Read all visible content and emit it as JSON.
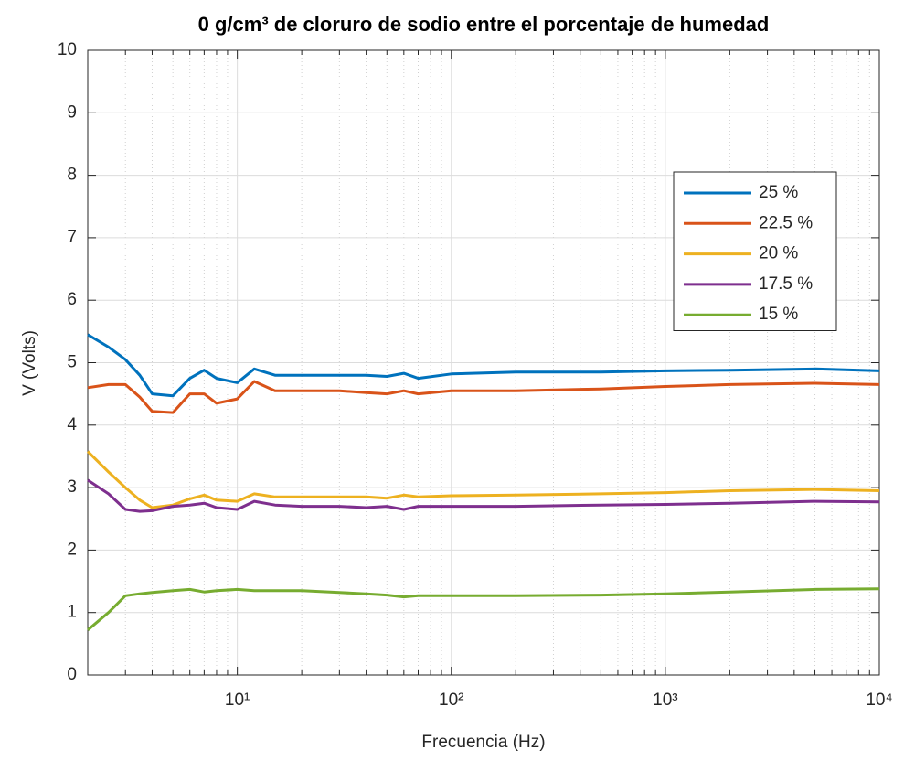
{
  "chart_data": {
    "type": "line",
    "title": "0 g/cm³ de cloruro de sodio entre el porcentaje de humedad",
    "xlabel": "Frecuencia (Hz)",
    "ylabel": "V (Volts)",
    "xscale": "log",
    "grid": true,
    "minor_grid": true,
    "legend": "east",
    "xlim": [
      2,
      10000
    ],
    "ylim": [
      0,
      10
    ],
    "xticks": [
      {
        "value": 10,
        "label": "10¹"
      },
      {
        "value": 100,
        "label": "10²"
      },
      {
        "value": 1000,
        "label": "10³"
      },
      {
        "value": 10000,
        "label": "10⁴"
      }
    ],
    "yticks": [
      0,
      1,
      2,
      3,
      4,
      5,
      6,
      7,
      8,
      9,
      10
    ],
    "x": [
      2,
      2.5,
      3,
      3.5,
      4,
      5,
      6,
      7,
      8,
      10,
      12,
      15,
      20,
      30,
      40,
      50,
      60,
      70,
      100,
      200,
      500,
      1000,
      2000,
      5000,
      10000
    ],
    "series": [
      {
        "name": "25 %",
        "color": "#0072bd",
        "values": [
          5.45,
          5.25,
          5.05,
          4.8,
          4.5,
          4.47,
          4.75,
          4.88,
          4.75,
          4.68,
          4.9,
          4.8,
          4.8,
          4.8,
          4.8,
          4.78,
          4.83,
          4.75,
          4.82,
          4.85,
          4.85,
          4.87,
          4.88,
          4.9,
          4.87
        ]
      },
      {
        "name": "22.5 %",
        "color": "#d95319",
        "values": [
          4.6,
          4.65,
          4.65,
          4.45,
          4.22,
          4.2,
          4.5,
          4.5,
          4.35,
          4.42,
          4.7,
          4.55,
          4.55,
          4.55,
          4.52,
          4.5,
          4.55,
          4.5,
          4.55,
          4.55,
          4.58,
          4.62,
          4.65,
          4.67,
          4.65
        ]
      },
      {
        "name": "20 %",
        "color": "#edb120",
        "values": [
          3.58,
          3.25,
          3.0,
          2.8,
          2.68,
          2.72,
          2.82,
          2.88,
          2.8,
          2.78,
          2.9,
          2.85,
          2.85,
          2.85,
          2.85,
          2.83,
          2.88,
          2.85,
          2.87,
          2.88,
          2.9,
          2.92,
          2.95,
          2.97,
          2.95
        ]
      },
      {
        "name": "17.5 %",
        "color": "#7e2f8e",
        "values": [
          3.12,
          2.9,
          2.65,
          2.62,
          2.63,
          2.7,
          2.72,
          2.75,
          2.68,
          2.65,
          2.78,
          2.72,
          2.7,
          2.7,
          2.68,
          2.7,
          2.65,
          2.7,
          2.7,
          2.7,
          2.72,
          2.73,
          2.75,
          2.78,
          2.77
        ]
      },
      {
        "name": "15 %",
        "color": "#77ac30",
        "values": [
          0.72,
          1.0,
          1.27,
          1.3,
          1.32,
          1.35,
          1.37,
          1.33,
          1.35,
          1.37,
          1.35,
          1.35,
          1.35,
          1.32,
          1.3,
          1.28,
          1.25,
          1.27,
          1.27,
          1.27,
          1.28,
          1.3,
          1.33,
          1.37,
          1.38
        ]
      }
    ]
  }
}
